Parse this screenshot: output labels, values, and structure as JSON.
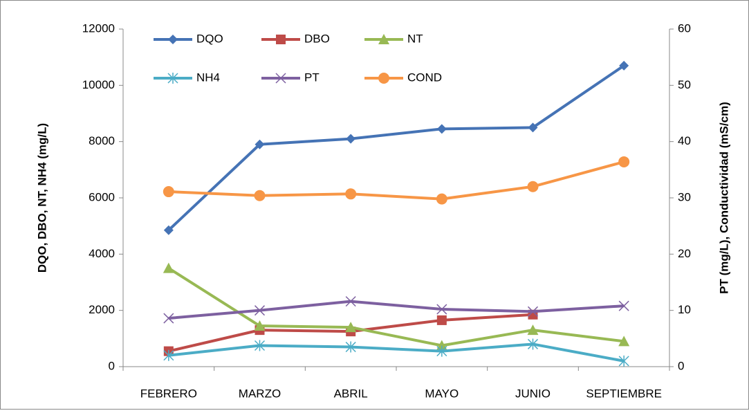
{
  "chart_data": {
    "type": "line",
    "categories": [
      "FEBRERO",
      "MARZO",
      "ABRIL",
      "MAYO",
      "JUNIO",
      "SEPTIEMBRE"
    ],
    "series": [
      {
        "name": "DQO",
        "color": "#4573b5",
        "marker": "diamond",
        "values": [
          4850,
          7900,
          8100,
          8450,
          8500,
          10700
        ]
      },
      {
        "name": "DBO",
        "color": "#be4b48",
        "marker": "square",
        "values": [
          550,
          1300,
          1250,
          1650,
          1850,
          null
        ]
      },
      {
        "name": "NT",
        "color": "#98b954",
        "marker": "triangle",
        "values": [
          3500,
          1450,
          1400,
          750,
          1300,
          900
        ]
      },
      {
        "name": "NH4",
        "color": "#4bacc6",
        "marker": "asterisk",
        "values": [
          400,
          750,
          700,
          550,
          800,
          200
        ]
      },
      {
        "name": "PT",
        "color": "#7d60a0",
        "marker": "x",
        "axis": "y2",
        "values": [
          8.6,
          10.0,
          11.6,
          10.2,
          9.8,
          10.8
        ]
      },
      {
        "name": "COND",
        "color": "#f79646",
        "marker": "circle",
        "axis": "y2",
        "values": [
          31.1,
          30.4,
          30.7,
          29.8,
          32.0,
          36.4
        ]
      }
    ],
    "y_label": "DQO, DBO, NT, NH4 (mg/L)",
    "y2_label": "PT (mg/L), Conductividad (mS/cm)",
    "ylim": [
      0,
      12000
    ],
    "yticks": [
      0,
      2000,
      4000,
      6000,
      8000,
      10000,
      12000
    ],
    "y2lim": [
      0,
      60
    ],
    "y2ticks": [
      0,
      10,
      20,
      30,
      40,
      50,
      60
    ],
    "legend": "top",
    "grid": false
  }
}
